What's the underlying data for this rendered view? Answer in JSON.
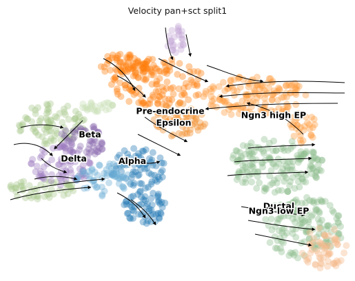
{
  "chart_data": {
    "type": "scatter",
    "title": "Velocity pan+sct split1",
    "xlabel": "",
    "ylabel": "",
    "axes_visible": false,
    "overlay": "velocity streamlines (black, with arrowheads)",
    "clusters": [
      {
        "name": "Pre-endocrine",
        "color": "#ff7f0e",
        "label_x": 0.478,
        "label_y": 0.628
      },
      {
        "name": "Epsilon",
        "color": "#f28e2b",
        "label_x": 0.488,
        "label_y": 0.583
      },
      {
        "name": "Ngn3 high EP",
        "color": "#ff9a3c",
        "label_x": 0.778,
        "label_y": 0.612
      },
      {
        "name": "Beta",
        "color": "#8c6bb1",
        "label_x": 0.245,
        "label_y": 0.537
      },
      {
        "name": "Delta",
        "color": "#9e7cc1",
        "label_x": 0.198,
        "label_y": 0.442
      },
      {
        "name": "Alpha",
        "color": "#1f77b4",
        "label_x": 0.368,
        "label_y": 0.433
      },
      {
        "name": "Ductal",
        "color": "#8fbc8f",
        "label_x": 0.793,
        "label_y": 0.255
      },
      {
        "name": "Ngn3 low EP",
        "color": "#a8c98c",
        "label_x": 0.793,
        "label_y": 0.237
      }
    ]
  }
}
